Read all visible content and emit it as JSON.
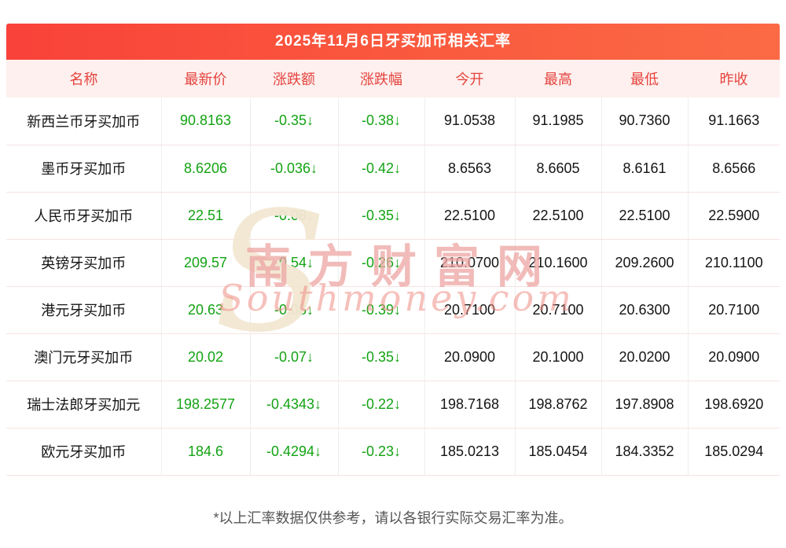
{
  "chart_data": {
    "type": "table",
    "title": "2025年11月6日牙买加币相关汇率",
    "columns": [
      "名称",
      "最新价",
      "涨跌额",
      "涨跌幅",
      "今开",
      "最高",
      "最低",
      "昨收"
    ],
    "rows": [
      [
        "新西兰币牙买加币",
        "90.8163",
        "-0.35↓",
        "-0.38↓",
        "91.0538",
        "91.1985",
        "90.7360",
        "91.1663"
      ],
      [
        "墨币牙买加币",
        "8.6206",
        "-0.036↓",
        "-0.42↓",
        "8.6563",
        "8.6605",
        "8.6161",
        "8.6566"
      ],
      [
        "人民币牙买加币",
        "22.51",
        "-0.08↓",
        "-0.35↓",
        "22.5100",
        "22.5100",
        "22.5100",
        "22.5900"
      ],
      [
        "英镑牙买加币",
        "209.57",
        "-0.54↓",
        "-0.26↓",
        "210.0700",
        "210.1600",
        "209.2600",
        "210.1100"
      ],
      [
        "港元牙买加币",
        "20.63",
        "-0.08↓",
        "-0.39↓",
        "20.7100",
        "20.7100",
        "20.6300",
        "20.7100"
      ],
      [
        "澳门元牙买加币",
        "20.02",
        "-0.07↓",
        "-0.35↓",
        "20.0900",
        "20.1000",
        "20.0200",
        "20.0900"
      ],
      [
        "瑞士法郎牙买加元",
        "198.2577",
        "-0.4343↓",
        "-0.22↓",
        "198.7168",
        "198.8762",
        "197.8908",
        "198.6920"
      ],
      [
        "欧元牙买加币",
        "184.6",
        "-0.4294↓",
        "-0.23↓",
        "185.0213",
        "185.0454",
        "184.3352",
        "185.0294"
      ]
    ],
    "layout": {
      "down_color": "#13a313",
      "header_bg": "#fdf0ee",
      "header_text": "#e5433e",
      "title_bg_gradient": [
        "#f9423a",
        "#fb6a45"
      ]
    }
  },
  "watermark": {
    "cn": "南方财富网",
    "en": "Southmoney.com",
    "initial": "S"
  },
  "footnote": "*以上汇率数据仅供参考，请以各银行实际交易汇率为准。"
}
